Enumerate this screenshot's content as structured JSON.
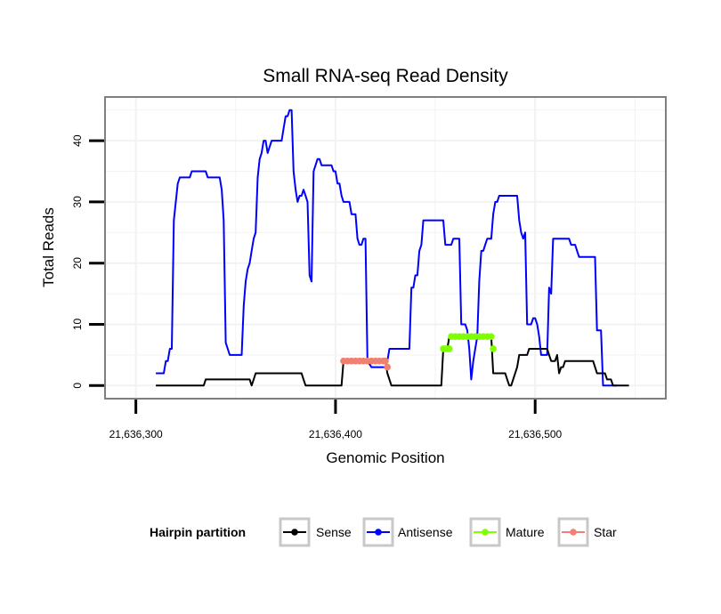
{
  "chart_data": {
    "type": "line",
    "title": "Small RNA-seq Read Density",
    "xlabel": "Genomic Position",
    "ylabel": "Total Reads",
    "xlim": [
      21636285,
      21636565
    ],
    "ylim": [
      -2,
      47
    ],
    "x_ticks": [
      21636300,
      21636400,
      21636500
    ],
    "x_tick_labels": [
      "21,636,300",
      "21,636,400",
      "21,636,500"
    ],
    "y_ticks": [
      0,
      10,
      20,
      30,
      40
    ],
    "y_tick_labels": [
      "0",
      "10",
      "20",
      "30",
      "40"
    ],
    "grid": true,
    "legend": {
      "title": "Hairpin partition",
      "placement": "bottom",
      "entries": [
        {
          "name": "Sense",
          "color": "#000000"
        },
        {
          "name": "Antisense",
          "color": "#0000ff"
        },
        {
          "name": "Mature",
          "color": "#7fff00"
        },
        {
          "name": "Star",
          "color": "#f08070"
        }
      ]
    },
    "series": [
      {
        "name": "Antisense",
        "color": "#0000ff",
        "style": "line",
        "points": [
          [
            21636310,
            2
          ],
          [
            21636314,
            2
          ],
          [
            21636315,
            4
          ],
          [
            21636316,
            4
          ],
          [
            21636317,
            6
          ],
          [
            21636318,
            6
          ],
          [
            21636319,
            27
          ],
          [
            21636320,
            30
          ],
          [
            21636321,
            33
          ],
          [
            21636322,
            34
          ],
          [
            21636327,
            34
          ],
          [
            21636328,
            35
          ],
          [
            21636335,
            35
          ],
          [
            21636336,
            34
          ],
          [
            21636342,
            34
          ],
          [
            21636343,
            32
          ],
          [
            21636344,
            27
          ],
          [
            21636345,
            7
          ],
          [
            21636347,
            5
          ],
          [
            21636353,
            5
          ],
          [
            21636354,
            13
          ],
          [
            21636355,
            17
          ],
          [
            21636356,
            19
          ],
          [
            21636357,
            20
          ],
          [
            21636358,
            22
          ],
          [
            21636359,
            24
          ],
          [
            21636360,
            25
          ],
          [
            21636361,
            34
          ],
          [
            21636362,
            37
          ],
          [
            21636363,
            38
          ],
          [
            21636364,
            40
          ],
          [
            21636365,
            40
          ],
          [
            21636366,
            38
          ],
          [
            21636367,
            39
          ],
          [
            21636368,
            40
          ],
          [
            21636373,
            40
          ],
          [
            21636374,
            42
          ],
          [
            21636375,
            44
          ],
          [
            21636376,
            44
          ],
          [
            21636377,
            45
          ],
          [
            21636378,
            45
          ],
          [
            21636379,
            35
          ],
          [
            21636380,
            32
          ],
          [
            21636381,
            30
          ],
          [
            21636382,
            31
          ],
          [
            21636383,
            31
          ],
          [
            21636384,
            32
          ],
          [
            21636385,
            31
          ],
          [
            21636386,
            30
          ],
          [
            21636387,
            18
          ],
          [
            21636388,
            17
          ],
          [
            21636389,
            35
          ],
          [
            21636390,
            36
          ],
          [
            21636391,
            37
          ],
          [
            21636392,
            37
          ],
          [
            21636393,
            36
          ],
          [
            21636398,
            36
          ],
          [
            21636399,
            35
          ],
          [
            21636400,
            35
          ],
          [
            21636401,
            33
          ],
          [
            21636402,
            33
          ],
          [
            21636403,
            31
          ],
          [
            21636404,
            30
          ],
          [
            21636407,
            30
          ],
          [
            21636408,
            28
          ],
          [
            21636410,
            28
          ],
          [
            21636411,
            24
          ],
          [
            21636412,
            23
          ],
          [
            21636413,
            23
          ],
          [
            21636414,
            24
          ],
          [
            21636415,
            24
          ],
          [
            21636416,
            4
          ],
          [
            21636418,
            3
          ],
          [
            21636425,
            3
          ],
          [
            21636426,
            4
          ],
          [
            21636427,
            6
          ],
          [
            21636437,
            6
          ],
          [
            21636438,
            16
          ],
          [
            21636439,
            16
          ],
          [
            21636440,
            18
          ],
          [
            21636441,
            18
          ],
          [
            21636442,
            22
          ],
          [
            21636443,
            23
          ],
          [
            21636444,
            27
          ],
          [
            21636454,
            27
          ],
          [
            21636455,
            23
          ],
          [
            21636458,
            23
          ],
          [
            21636459,
            24
          ],
          [
            21636462,
            24
          ],
          [
            21636463,
            10
          ],
          [
            21636465,
            10
          ],
          [
            21636466,
            9
          ],
          [
            21636467,
            6
          ],
          [
            21636468,
            1
          ],
          [
            21636469,
            4
          ],
          [
            21636470,
            6
          ],
          [
            21636471,
            8
          ],
          [
            21636472,
            17
          ],
          [
            21636473,
            22
          ],
          [
            21636474,
            22
          ],
          [
            21636475,
            23
          ],
          [
            21636476,
            24
          ],
          [
            21636478,
            24
          ],
          [
            21636479,
            28
          ],
          [
            21636480,
            30
          ],
          [
            21636481,
            30
          ],
          [
            21636482,
            31
          ],
          [
            21636484,
            31
          ],
          [
            21636491,
            31
          ],
          [
            21636492,
            27
          ],
          [
            21636493,
            25
          ],
          [
            21636494,
            24
          ],
          [
            21636495,
            25
          ],
          [
            21636496,
            10
          ],
          [
            21636498,
            10
          ],
          [
            21636499,
            11
          ],
          [
            21636500,
            11
          ],
          [
            21636501,
            10
          ],
          [
            21636502,
            8
          ],
          [
            21636503,
            5
          ],
          [
            21636506,
            5
          ],
          [
            21636507,
            16
          ],
          [
            21636508,
            15
          ],
          [
            21636509,
            24
          ],
          [
            21636517,
            24
          ],
          [
            21636518,
            23
          ],
          [
            21636520,
            23
          ],
          [
            21636521,
            22
          ],
          [
            21636522,
            21
          ],
          [
            21636530,
            21
          ],
          [
            21636531,
            9
          ],
          [
            21636533,
            9
          ],
          [
            21636534,
            0
          ],
          [
            21636541,
            0
          ]
        ]
      },
      {
        "name": "Sense",
        "color": "#000000",
        "style": "line",
        "points": [
          [
            21636310,
            0
          ],
          [
            21636334,
            0
          ],
          [
            21636335,
            1
          ],
          [
            21636357,
            1
          ],
          [
            21636358,
            0
          ],
          [
            21636359,
            1
          ],
          [
            21636360,
            2
          ],
          [
            21636383,
            2
          ],
          [
            21636384,
            1
          ],
          [
            21636385,
            0
          ],
          [
            21636403,
            0
          ],
          [
            21636404,
            4
          ],
          [
            21636425,
            4
          ],
          [
            21636426,
            2
          ],
          [
            21636427,
            1
          ],
          [
            21636428,
            0
          ],
          [
            21636453,
            0
          ],
          [
            21636454,
            6
          ],
          [
            21636456,
            6
          ],
          [
            21636457,
            8
          ],
          [
            21636478,
            8
          ],
          [
            21636479,
            2
          ],
          [
            21636485,
            2
          ],
          [
            21636486,
            1
          ],
          [
            21636487,
            0
          ],
          [
            21636488,
            0
          ],
          [
            21636489,
            1
          ],
          [
            21636491,
            3
          ],
          [
            21636492,
            5
          ],
          [
            21636496,
            5
          ],
          [
            21636497,
            6
          ],
          [
            21636506,
            6
          ],
          [
            21636507,
            5
          ],
          [
            21636508,
            4
          ],
          [
            21636510,
            4
          ],
          [
            21636511,
            5
          ],
          [
            21636512,
            2
          ],
          [
            21636513,
            3
          ],
          [
            21636514,
            3
          ],
          [
            21636515,
            4
          ],
          [
            21636529,
            4
          ],
          [
            21636530,
            3
          ],
          [
            21636531,
            2
          ],
          [
            21636535,
            2
          ],
          [
            21636536,
            1
          ],
          [
            21636538,
            1
          ],
          [
            21636539,
            0
          ],
          [
            21636547,
            0
          ]
        ]
      },
      {
        "name": "Mature",
        "color": "#7fff00",
        "style": "points",
        "points": [
          [
            21636454,
            6
          ],
          [
            21636455,
            6
          ],
          [
            21636456,
            6
          ],
          [
            21636457,
            6
          ],
          [
            21636458,
            8
          ],
          [
            21636460,
            8
          ],
          [
            21636462,
            8
          ],
          [
            21636464,
            8
          ],
          [
            21636466,
            8
          ],
          [
            21636468,
            8
          ],
          [
            21636470,
            8
          ],
          [
            21636472,
            8
          ],
          [
            21636474,
            8
          ],
          [
            21636476,
            8
          ],
          [
            21636478,
            8
          ],
          [
            21636479,
            6
          ]
        ]
      },
      {
        "name": "Star",
        "color": "#f08070",
        "style": "points",
        "points": [
          [
            21636404,
            4
          ],
          [
            21636406,
            4
          ],
          [
            21636408,
            4
          ],
          [
            21636410,
            4
          ],
          [
            21636412,
            4
          ],
          [
            21636414,
            4
          ],
          [
            21636416,
            4
          ],
          [
            21636418,
            4
          ],
          [
            21636420,
            4
          ],
          [
            21636422,
            4
          ],
          [
            21636424,
            4
          ],
          [
            21636425,
            4
          ],
          [
            21636426,
            3
          ]
        ]
      }
    ]
  }
}
